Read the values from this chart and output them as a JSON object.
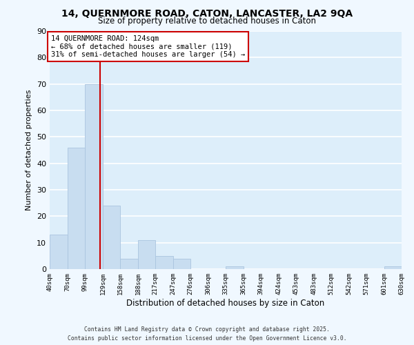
{
  "title": "14, QUERNMORE ROAD, CATON, LANCASTER, LA2 9QA",
  "subtitle": "Size of property relative to detached houses in Caton",
  "xlabel": "Distribution of detached houses by size in Caton",
  "ylabel": "Number of detached properties",
  "bar_color": "#c8ddf0",
  "bar_edge_color": "#aac4df",
  "ax_bg_color": "#ddeefa",
  "fig_bg_color": "#f0f8ff",
  "grid_color": "#ffffff",
  "vline_x": 124,
  "vline_color": "#cc0000",
  "annotation_line1": "14 QUERNMORE ROAD: 124sqm",
  "annotation_line2": "← 68% of detached houses are smaller (119)",
  "annotation_line3": "31% of semi-detached houses are larger (54) →",
  "annotation_box_color": "#ffffff",
  "annotation_box_edge": "#cc0000",
  "bins": [
    40,
    70,
    99,
    129,
    158,
    188,
    217,
    247,
    276,
    306,
    335,
    365,
    394,
    424,
    453,
    483,
    512,
    542,
    571,
    601,
    630
  ],
  "counts": [
    13,
    46,
    70,
    24,
    4,
    11,
    5,
    4,
    0,
    0,
    1,
    0,
    0,
    0,
    0,
    0,
    0,
    0,
    0,
    1
  ],
  "ylim": [
    0,
    90
  ],
  "yticks": [
    0,
    10,
    20,
    30,
    40,
    50,
    60,
    70,
    80,
    90
  ],
  "footer_line1": "Contains HM Land Registry data © Crown copyright and database right 2025.",
  "footer_line2": "Contains public sector information licensed under the Open Government Licence v3.0."
}
